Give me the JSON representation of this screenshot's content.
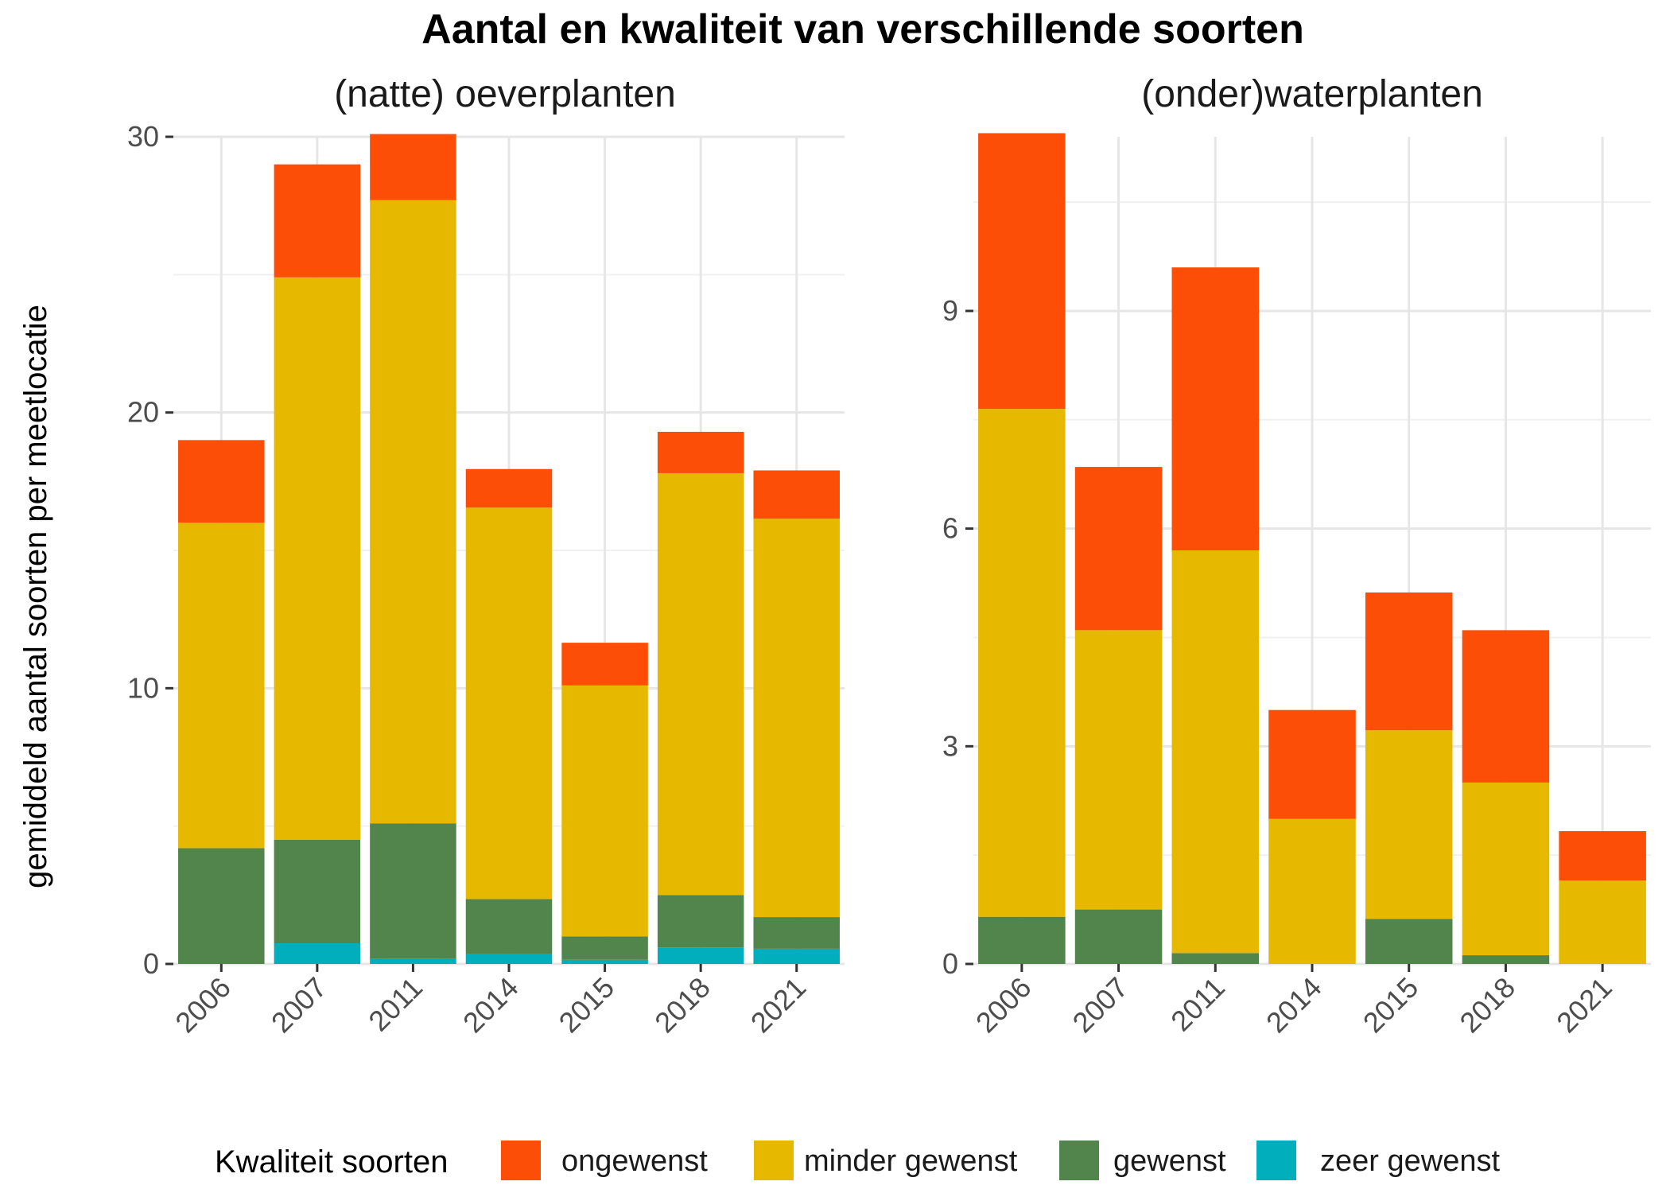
{
  "chart_data": {
    "type": "bar",
    "stacked": true,
    "title": "Aantal en kwaliteit van verschillende soorten",
    "ylabel": "gemiddeld aantal soorten per meetlocatie",
    "legend": {
      "title": "Kwaliteit soorten",
      "placement": "bottom",
      "entries": [
        "ongewenst",
        "minder gewenst",
        "gewenst",
        "zeer gewenst"
      ]
    },
    "colors": {
      "ongewenst": "#FC4E07",
      "minder gewenst": "#E7B800",
      "gewenst": "#52854C",
      "zeer gewenst": "#00AFBB"
    },
    "grid": true,
    "panels": [
      {
        "title": "(natte) oeverplanten",
        "categories": [
          "2006",
          "2007",
          "2011",
          "2014",
          "2015",
          "2018",
          "2021"
        ],
        "ylim": [
          0,
          30
        ],
        "yticks": [
          0,
          10,
          20,
          30
        ],
        "series": [
          {
            "name": "zeer gewenst",
            "values": [
              0.0,
              0.75,
              0.2,
              0.35,
              0.15,
              0.6,
              0.55
            ]
          },
          {
            "name": "gewenst",
            "values": [
              4.2,
              3.75,
              4.9,
              2.0,
              0.85,
              1.9,
              1.15
            ]
          },
          {
            "name": "minder gewenst",
            "values": [
              11.8,
              20.4,
              22.6,
              14.2,
              9.1,
              15.3,
              14.45
            ]
          },
          {
            "name": "ongewenst",
            "values": [
              3.0,
              4.1,
              2.4,
              1.4,
              1.55,
              1.5,
              1.75
            ]
          }
        ]
      },
      {
        "title": "(onder)waterplanten",
        "categories": [
          "2006",
          "2007",
          "2011",
          "2014",
          "2015",
          "2018",
          "2021"
        ],
        "ylim": [
          0,
          11.4
        ],
        "yticks": [
          0,
          3,
          6,
          9
        ],
        "series": [
          {
            "name": "zeer gewenst",
            "values": [
              0,
              0,
              0,
              0,
              0,
              0,
              0
            ]
          },
          {
            "name": "gewenst",
            "values": [
              0.65,
              0.75,
              0.15,
              0.0,
              0.62,
              0.12,
              0.0
            ]
          },
          {
            "name": "minder gewenst",
            "values": [
              7.0,
              3.85,
              5.55,
              2.0,
              2.6,
              2.38,
              1.15
            ]
          },
          {
            "name": "ongewenst",
            "values": [
              3.8,
              2.25,
              3.9,
              1.5,
              1.9,
              2.1,
              0.68
            ]
          }
        ]
      }
    ]
  }
}
